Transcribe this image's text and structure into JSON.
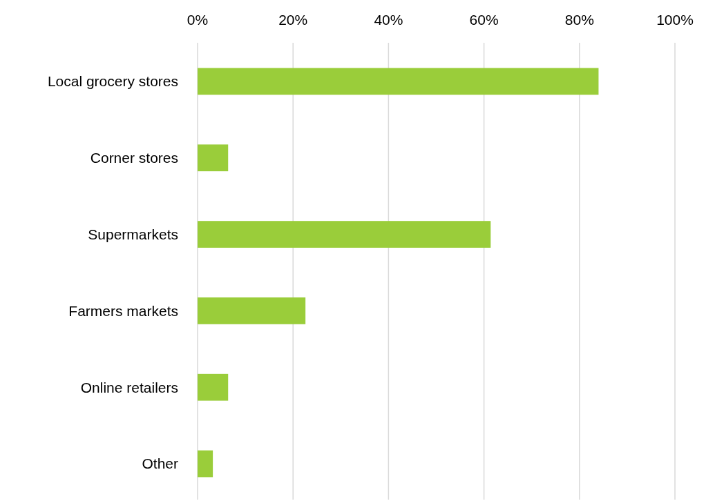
{
  "chart_data": {
    "type": "bar",
    "orientation": "horizontal",
    "categories": [
      "Local grocery stores",
      "Corner stores",
      "Supermarkets",
      "Farmers markets",
      "Online retailers",
      "Other"
    ],
    "values": [
      84,
      6.4,
      61.4,
      22.6,
      6.4,
      3.2
    ],
    "color": "#9acd3a",
    "xlim": [
      0,
      100
    ],
    "xticks": [
      {
        "value": 0,
        "label": "0%"
      },
      {
        "value": 20,
        "label": "20%"
      },
      {
        "value": 40,
        "label": "40%"
      },
      {
        "value": 60,
        "label": "60%"
      },
      {
        "value": 80,
        "label": "80%"
      },
      {
        "value": 100,
        "label": "100%"
      }
    ],
    "grid": "x"
  }
}
